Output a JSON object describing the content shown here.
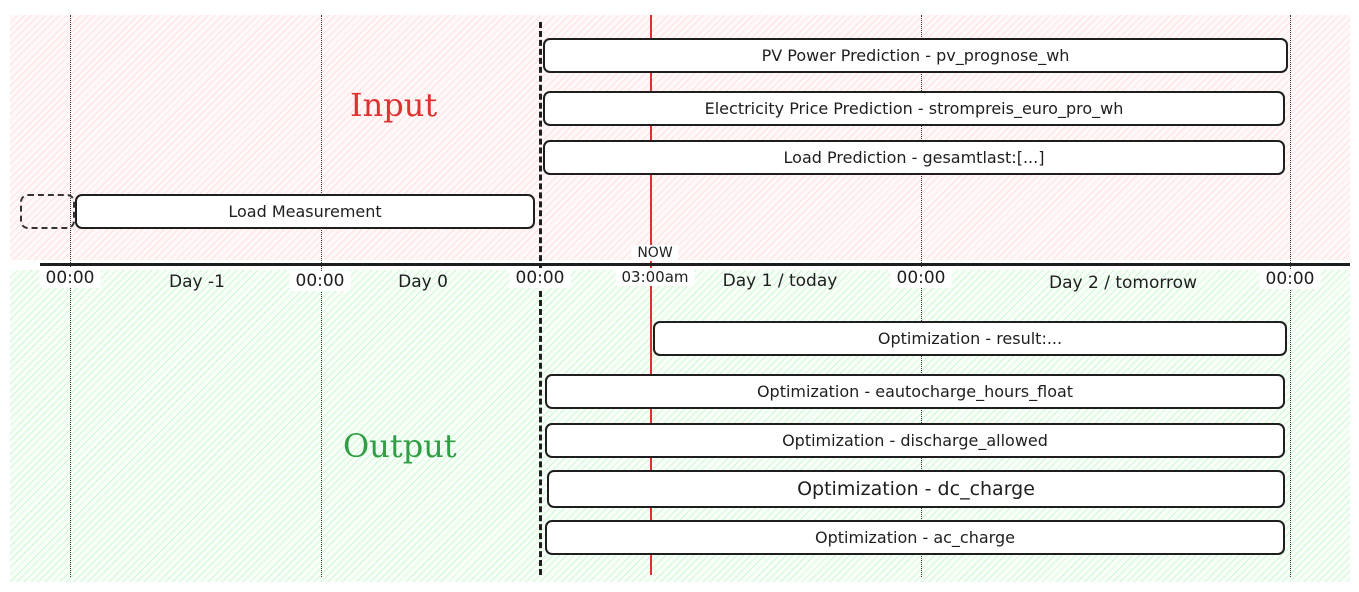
{
  "colors": {
    "input": "#e03131",
    "output": "#2f9e44",
    "now": "#e03131"
  },
  "labels": {
    "input": "Input",
    "output": "Output",
    "now": "NOW"
  },
  "axis": {
    "ticks": [
      "00:00",
      "00:00",
      "00:00",
      "03:00am",
      "00:00",
      "00:00"
    ],
    "days": [
      "Day -1",
      "Day 0",
      "Day 1 / today",
      "Day 2 / tomorrow"
    ]
  },
  "inputs": [
    "PV Power Prediction - pv_prognose_wh",
    "Electricity Price Prediction - strompreis_euro_pro_wh",
    "Load Prediction - gesamtlast:[...]",
    "Load Measurement"
  ],
  "outputs": [
    "Optimization - result:...",
    "Optimization - eautocharge_hours_float",
    "Optimization - discharge_allowed",
    "Optimization - dc_charge",
    "Optimization - ac_charge"
  ]
}
